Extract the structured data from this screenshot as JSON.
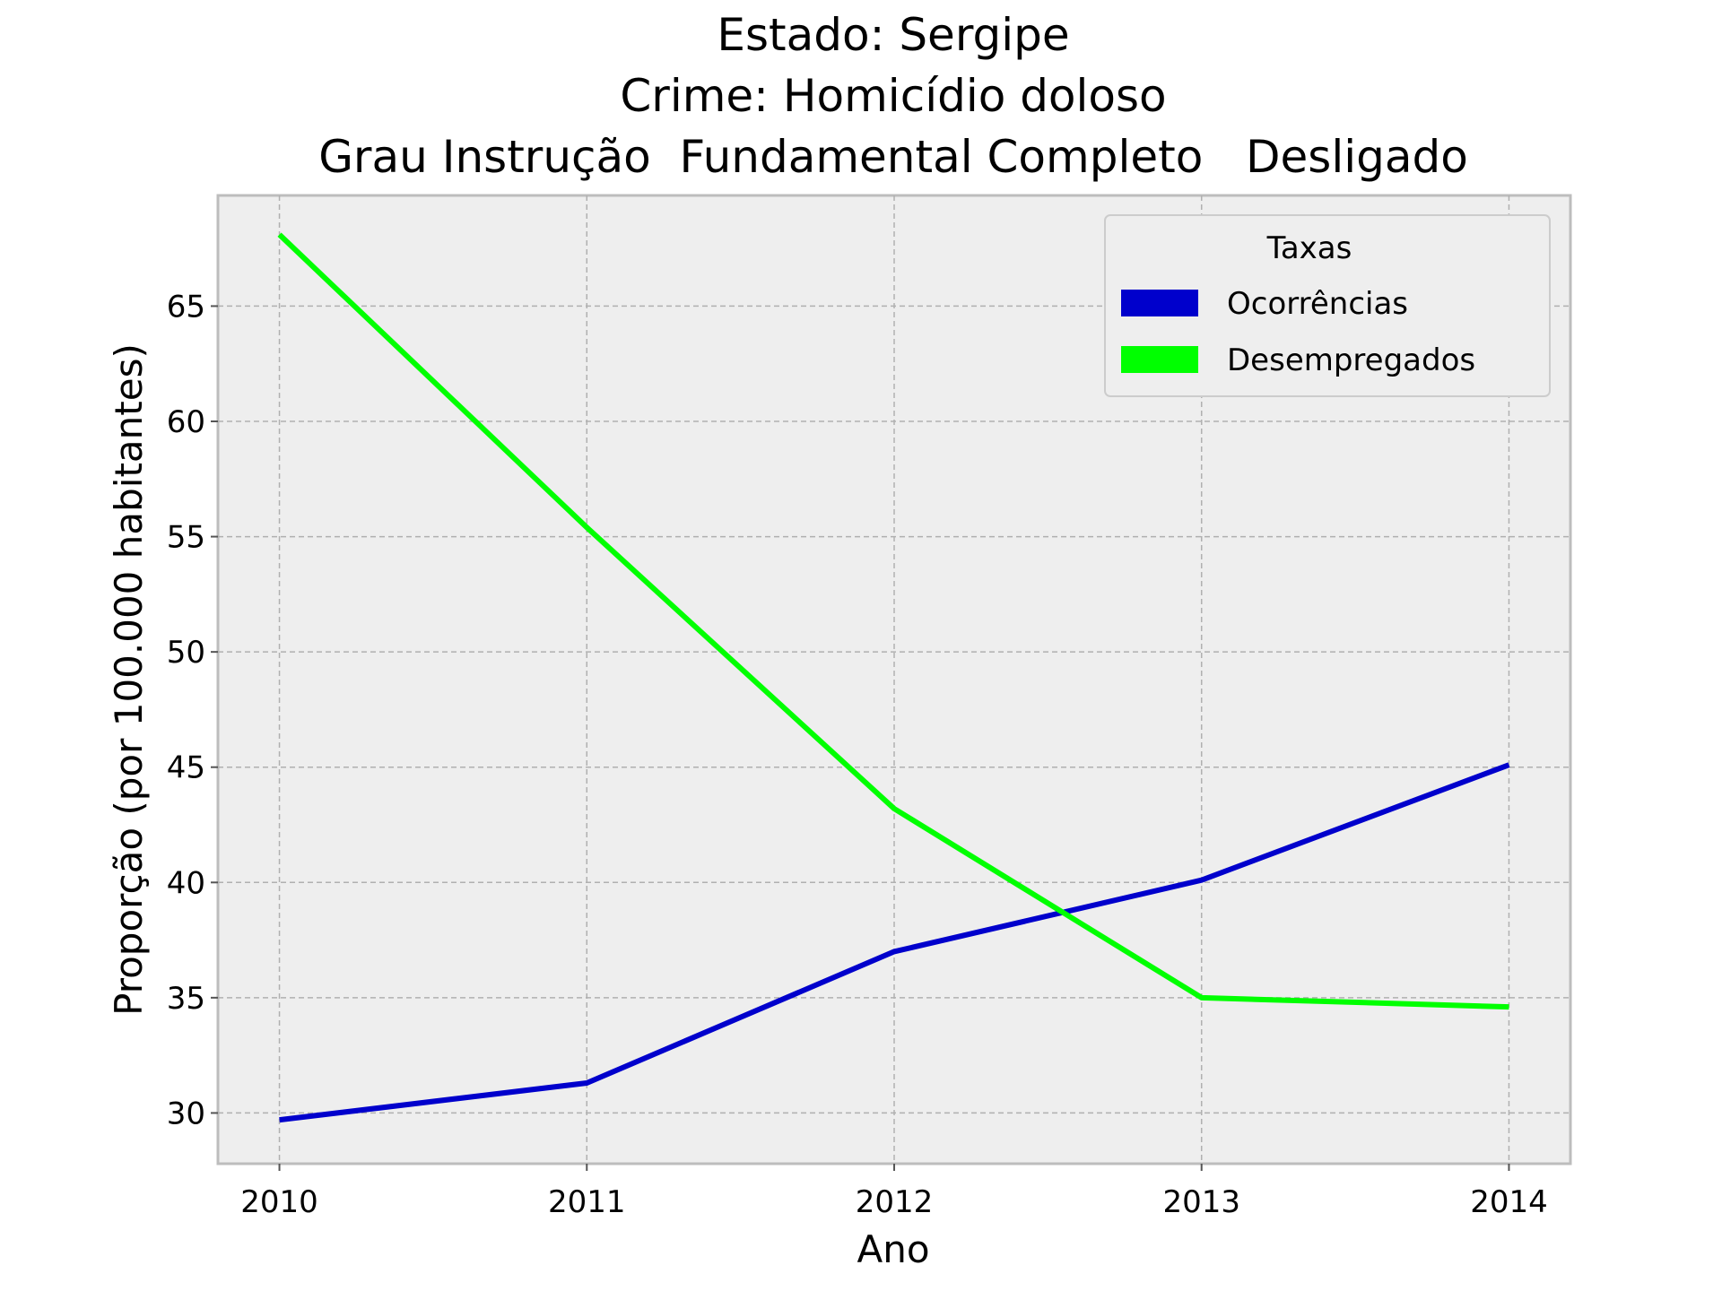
{
  "chart_data": {
    "type": "line",
    "title_lines": [
      "Estado: Sergipe",
      "Crime: Homicídio doloso",
      "Grau Instrução  Fundamental Completo   Desligado"
    ],
    "xlabel": "Ano",
    "ylabel": "Proporção (por 100.000 habitantes)",
    "x": [
      2010,
      2011,
      2012,
      2013,
      2014
    ],
    "x_tick_labels": [
      "2010",
      "2011",
      "2012",
      "2013",
      "2014"
    ],
    "y_ticks": [
      30,
      35,
      40,
      45,
      50,
      55,
      60,
      65
    ],
    "y_tick_labels": [
      "30",
      "35",
      "40",
      "45",
      "50",
      "55",
      "60",
      "65"
    ],
    "xlim": [
      2009.8,
      2014.2
    ],
    "ylim": [
      27.8,
      69.8
    ],
    "grid": true,
    "legend": {
      "title": "Taxas",
      "placement": "top-right"
    },
    "series": [
      {
        "name": "Ocorrências",
        "color": "#0000cc",
        "values": [
          29.7,
          31.3,
          37.0,
          40.1,
          45.1
        ]
      },
      {
        "name": "Desempregados",
        "color": "#00ff00",
        "values": [
          68.1,
          55.4,
          43.2,
          35.0,
          34.6
        ]
      }
    ]
  }
}
